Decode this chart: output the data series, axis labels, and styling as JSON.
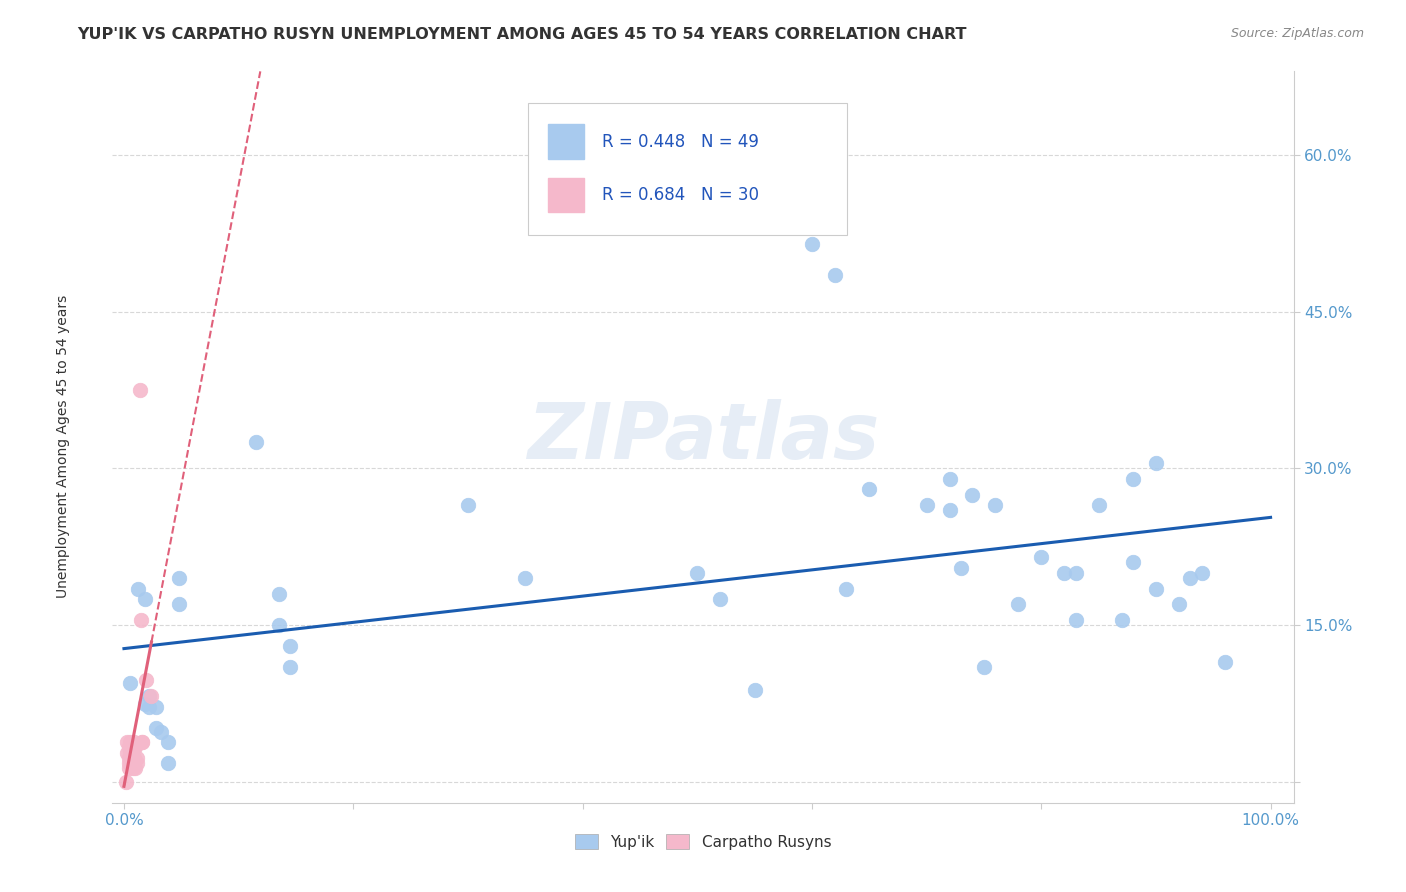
{
  "title": "YUP'IK VS CARPATHO RUSYN UNEMPLOYMENT AMONG AGES 45 TO 54 YEARS CORRELATION CHART",
  "source": "Source: ZipAtlas.com",
  "ylabel": "Unemployment Among Ages 45 to 54 years",
  "xlim": [
    -0.01,
    1.02
  ],
  "ylim": [
    -0.02,
    0.68
  ],
  "ytick_vals": [
    0.0,
    0.15,
    0.3,
    0.45,
    0.6
  ],
  "ytick_labels": [
    "",
    "15.0%",
    "30.0%",
    "45.0%",
    "60.0%"
  ],
  "xtick_vals": [
    0.0,
    0.2,
    0.4,
    0.6,
    0.8,
    1.0
  ],
  "xtick_labels": [
    "0.0%",
    "",
    "",
    "",
    "",
    "100.0%"
  ],
  "legend_labels": [
    "Yup'ik",
    "Carpatho Rusyns"
  ],
  "blue_R": "0.448",
  "blue_N": "49",
  "pink_R": "0.684",
  "pink_N": "30",
  "blue_color": "#a8caee",
  "pink_color": "#f5b8cb",
  "blue_line_color": "#1a5cb0",
  "pink_line_color": "#e0607a",
  "background_color": "#ffffff",
  "grid_color": "#d8d8d8",
  "title_fontsize": 11.5,
  "axis_label_fontsize": 10,
  "tick_fontsize": 11,
  "yup_x": [
    0.005,
    0.012,
    0.018,
    0.018,
    0.022,
    0.022,
    0.028,
    0.028,
    0.032,
    0.038,
    0.038,
    0.048,
    0.048,
    0.115,
    0.135,
    0.135,
    0.145,
    0.145,
    0.3,
    0.35,
    0.5,
    0.52,
    0.55,
    0.6,
    0.62,
    0.63,
    0.65,
    0.7,
    0.72,
    0.72,
    0.73,
    0.74,
    0.75,
    0.76,
    0.78,
    0.8,
    0.82,
    0.83,
    0.83,
    0.85,
    0.87,
    0.88,
    0.88,
    0.9,
    0.9,
    0.92,
    0.93,
    0.94,
    0.96
  ],
  "yup_y": [
    0.095,
    0.185,
    0.175,
    0.075,
    0.082,
    0.072,
    0.072,
    0.052,
    0.048,
    0.038,
    0.018,
    0.195,
    0.17,
    0.325,
    0.18,
    0.15,
    0.13,
    0.11,
    0.265,
    0.195,
    0.2,
    0.175,
    0.088,
    0.515,
    0.485,
    0.185,
    0.28,
    0.265,
    0.29,
    0.26,
    0.205,
    0.275,
    0.11,
    0.265,
    0.17,
    0.215,
    0.2,
    0.2,
    0.155,
    0.265,
    0.155,
    0.29,
    0.21,
    0.305,
    0.185,
    0.17,
    0.195,
    0.2,
    0.115
  ],
  "carpath_x": [
    0.002,
    0.003,
    0.003,
    0.004,
    0.004,
    0.004,
    0.004,
    0.005,
    0.005,
    0.005,
    0.006,
    0.006,
    0.007,
    0.007,
    0.007,
    0.008,
    0.008,
    0.009,
    0.009,
    0.009,
    0.01,
    0.01,
    0.011,
    0.011,
    0.014,
    0.015,
    0.016,
    0.016,
    0.019,
    0.024
  ],
  "carpath_y": [
    0.0,
    0.038,
    0.028,
    0.018,
    0.013,
    0.023,
    0.033,
    0.028,
    0.018,
    0.038,
    0.023,
    0.033,
    0.028,
    0.018,
    0.033,
    0.013,
    0.023,
    0.023,
    0.038,
    0.033,
    0.013,
    0.033,
    0.023,
    0.018,
    0.375,
    0.155,
    0.038,
    0.038,
    0.098,
    0.082
  ]
}
